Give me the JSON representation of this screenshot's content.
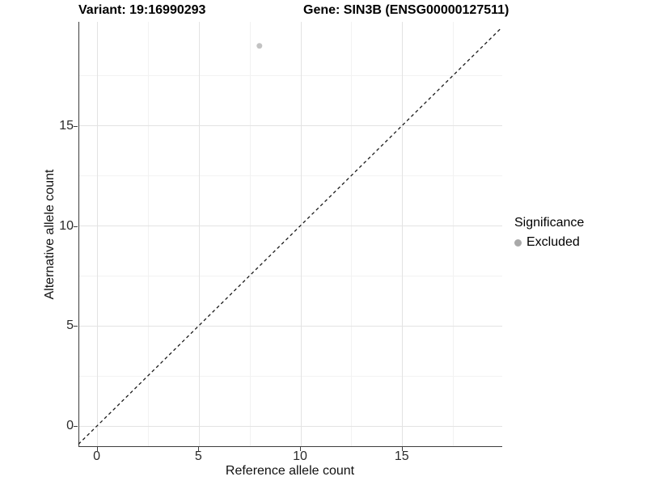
{
  "header": {
    "variant_title": "Variant: 19:16990293",
    "gene_title": "Gene: SIN3B (ENSG00000127511)"
  },
  "chart_data": {
    "type": "scatter",
    "titles": [
      "Variant: 19:16990293",
      "Gene: SIN3B (ENSG00000127511)"
    ],
    "xlabel": "Reference allele count",
    "ylabel": "Alternative allele count",
    "xlim": [
      -0.9,
      19.9
    ],
    "ylim": [
      -1.0,
      20.2
    ],
    "x_ticks": {
      "major": [
        0,
        5,
        10,
        15
      ],
      "minor": [
        2.5,
        7.5,
        12.5,
        17.5
      ]
    },
    "y_ticks": {
      "major": [
        0,
        5,
        10,
        15
      ],
      "minor": [
        2.5,
        7.5,
        12.5,
        17.5
      ]
    },
    "grid": "major+minor",
    "series": [
      {
        "name": "Excluded",
        "color": "#c3c3c3",
        "points": [
          {
            "x": 8,
            "y": 19
          }
        ]
      }
    ],
    "reference_line": {
      "type": "identity y=x",
      "style": "dashed",
      "color": "#1a1a1a"
    },
    "legend": {
      "title": "Significance",
      "position": "right",
      "items": [
        {
          "label": "Excluded",
          "color": "#a9a9a9"
        }
      ]
    }
  },
  "colors": {
    "background": "#ffffff",
    "grid_major": "#e3e3e3",
    "grid_minor": "#f2f2f2",
    "axis_line": "#3d3d3d",
    "tick_label": "#2b2b2b",
    "point": "#c3c3c3",
    "legend_key": "#a9a9a9"
  }
}
